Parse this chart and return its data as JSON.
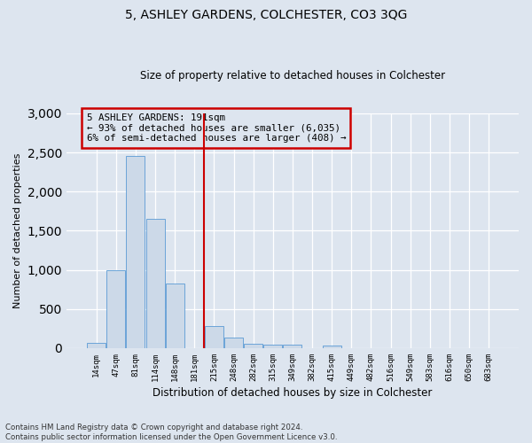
{
  "title": "5, ASHLEY GARDENS, COLCHESTER, CO3 3QG",
  "subtitle": "Size of property relative to detached houses in Colchester",
  "xlabel": "Distribution of detached houses by size in Colchester",
  "ylabel": "Number of detached properties",
  "footnote": "Contains HM Land Registry data © Crown copyright and database right 2024.\nContains public sector information licensed under the Open Government Licence v3.0.",
  "categories": [
    "14sqm",
    "47sqm",
    "81sqm",
    "114sqm",
    "148sqm",
    "181sqm",
    "215sqm",
    "248sqm",
    "282sqm",
    "315sqm",
    "349sqm",
    "382sqm",
    "415sqm",
    "449sqm",
    "482sqm",
    "516sqm",
    "549sqm",
    "583sqm",
    "616sqm",
    "650sqm",
    "683sqm"
  ],
  "values": [
    65,
    1000,
    2450,
    1650,
    830,
    0,
    280,
    130,
    55,
    45,
    40,
    0,
    30,
    0,
    0,
    0,
    0,
    0,
    0,
    0,
    0
  ],
  "bar_color": "#ccd9e8",
  "bar_edge_color": "#5b9bd5",
  "vline_color": "#cc0000",
  "vline_x_index": 5.5,
  "ylim": [
    0,
    3000
  ],
  "yticks": [
    0,
    500,
    1000,
    1500,
    2000,
    2500,
    3000
  ],
  "annotation_text": "5 ASHLEY GARDENS: 191sqm\n← 93% of detached houses are smaller (6,035)\n6% of semi-detached houses are larger (408) →",
  "annotation_box_color": "#cc0000",
  "background_color": "#dde5ef"
}
